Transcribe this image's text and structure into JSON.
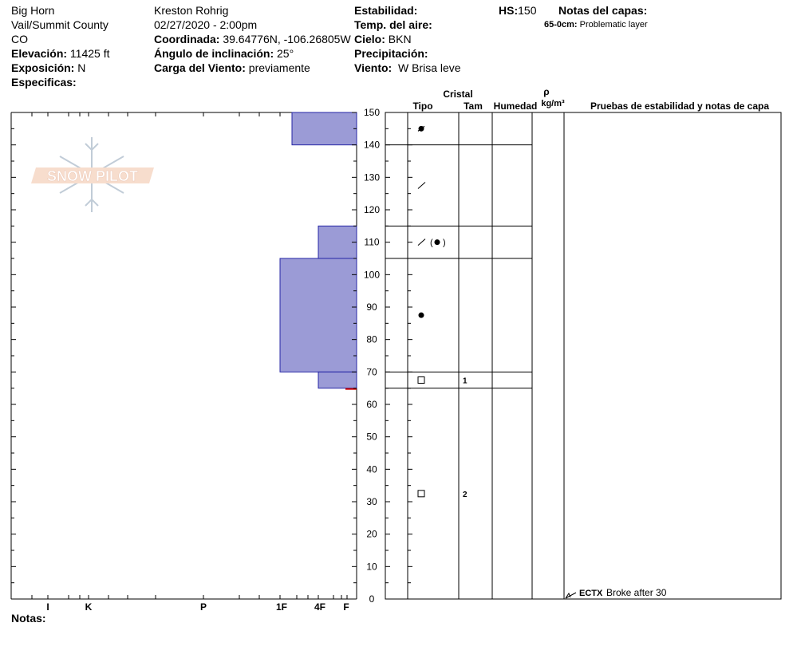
{
  "header": {
    "location_name": "Big Horn",
    "region": "Vail/Summit County",
    "state": "CO",
    "elevation_label": "Elevación:",
    "elevation_value": "11425 ft",
    "aspect_label": "Exposición:",
    "aspect_value": "N",
    "specifics_label": "Especificas:",
    "observer": "Kreston Rohrig",
    "datetime": "02/27/2020 - 2:00pm",
    "coords_label": "Coordinada:",
    "coords_value": "39.64776N, -106.26805W",
    "slope_label": "Ángulo de inclinación:",
    "slope_value": "25°",
    "wind_load_label": "Carga del Viento:",
    "wind_load_value": "previamente",
    "stability_label": "Estabilidad:",
    "air_temp_label": "Temp. del aire:",
    "sky_label": "Cielo:",
    "sky_value": "BKN",
    "precip_label": "Precipitación:",
    "wind_label": "Viento:",
    "wind_value": "W Brisa leve",
    "hs_label": "HS:",
    "hs_value": "150",
    "layer_notes_label": "Notas del capas:",
    "layer_note_range": "65-0cm:",
    "layer_note_text": "Problematic layer"
  },
  "notes_label": "Notas:",
  "columns": {
    "crystal": "Cristal",
    "type": "Tipo",
    "size": "Tam",
    "moisture": "Humedad",
    "rho": "ρ",
    "density_unit": "kg/m³",
    "tests": "Pruebas de estabilidad y notas de capa"
  },
  "watermark": "SNOW PILOT",
  "colors": {
    "layer_fill": "#9b9bd6",
    "layer_stroke": "#2626a6",
    "grid": "#000000",
    "marker": "#cc0000"
  },
  "chart_data": {
    "type": "bar",
    "title": "",
    "y_axis": {
      "range": [
        0,
        150
      ],
      "ticks": [
        0,
        10,
        20,
        30,
        40,
        50,
        60,
        70,
        80,
        90,
        100,
        110,
        120,
        130,
        140,
        150
      ],
      "unit": "cm"
    },
    "hardness_scale": [
      "I",
      "K",
      "P",
      "1F",
      "4F",
      "F"
    ],
    "layers": [
      {
        "top": 150,
        "bottom": 140,
        "hardness": "1F-",
        "crystal_icon": "melt-freeze",
        "size": ""
      },
      {
        "top": 140,
        "bottom": 115,
        "hardness": "F",
        "crystal_icon": "decomposing",
        "size": ""
      },
      {
        "top": 115,
        "bottom": 105,
        "hardness": "4F",
        "crystal_icon": "decomposing-rounded",
        "size": ""
      },
      {
        "top": 105,
        "bottom": 70,
        "hardness": "1F",
        "crystal_icon": "rounded",
        "size": ""
      },
      {
        "top": 70,
        "bottom": 65,
        "hardness": "4F",
        "crystal_icon": "faceted",
        "size": "1"
      },
      {
        "top": 65,
        "bottom": 0,
        "hardness": "F",
        "crystal_icon": "faceted",
        "size": "2"
      }
    ],
    "stability_tests": [
      {
        "depth": 0,
        "code": "ECTX",
        "note": "Broke after 30"
      }
    ],
    "layer_note_depth": 65
  }
}
